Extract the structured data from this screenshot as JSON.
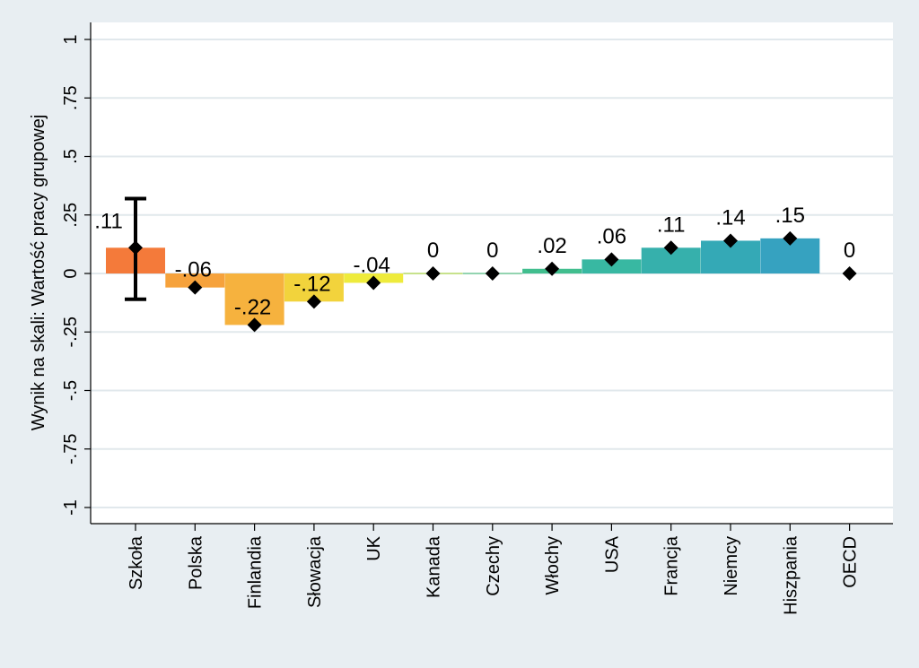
{
  "chart_data": {
    "type": "bar",
    "ylabel": "Wynik na skali: Wartość pracy grupowej",
    "ylim": [
      -1,
      1
    ],
    "yticks": [
      1,
      0.75,
      0.5,
      0.25,
      0,
      -0.25,
      -0.5,
      -0.75,
      -1
    ],
    "ytick_labels": [
      "1",
      ".75",
      ".5",
      ".25",
      "0",
      "-.25",
      "-.5",
      "-.75",
      "-1"
    ],
    "grid": true,
    "categories": [
      "Szkoła",
      "Polska",
      "Finlandia",
      "Słowacja",
      "UK",
      "Kanada",
      "Czechy",
      "Włochy",
      "USA",
      "Francja",
      "Niemcy",
      "Hiszpania",
      "OECD"
    ],
    "values": [
      0.11,
      -0.06,
      -0.22,
      -0.12,
      -0.04,
      0,
      0,
      0.02,
      0.06,
      0.11,
      0.14,
      0.15,
      0
    ],
    "value_labels": [
      ".11",
      "-.06",
      "-.22",
      "-.12",
      "-.04",
      "0",
      "0",
      ".02",
      ".06",
      ".11",
      ".14",
      ".15",
      "0"
    ],
    "bar_colors": [
      "#f47a3a",
      "#f6a23c",
      "#f6b23e",
      "#f2d33c",
      "#eeeb3c",
      "#b6de4c",
      "#5fc888",
      "#41be8e",
      "#38b8a2",
      "#36b0ac",
      "#34a9b6",
      "#36a2c0",
      null
    ],
    "error_bar": {
      "category": "Szkoła",
      "low": -0.11,
      "high": 0.32
    }
  }
}
